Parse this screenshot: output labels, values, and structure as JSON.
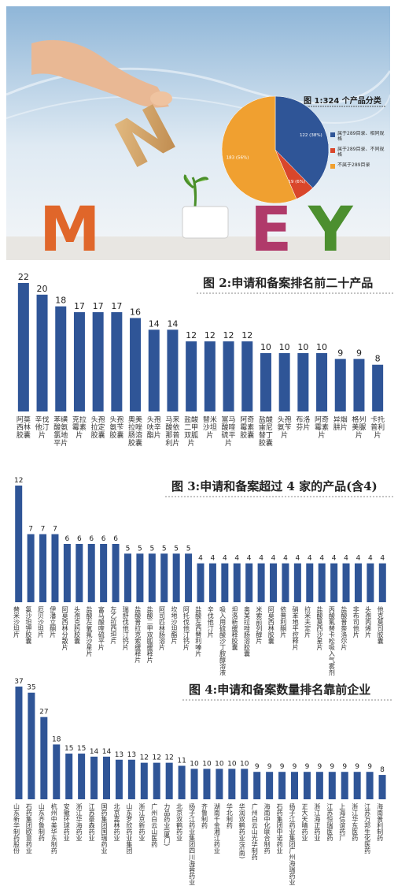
{
  "illustration": {
    "letters": [
      "M",
      "O",
      "N",
      "E",
      "Y"
    ]
  },
  "chart_data": [
    {
      "type": "pie",
      "title": "图 1:324 个产品分类",
      "categories": [
        "属于289目录、相同规格",
        "属于289目录、不同规格",
        "不属于289目录"
      ],
      "values": [
        122,
        19,
        183
      ],
      "value_labels": [
        "122 (38%)",
        "19 (6%)",
        "183 (56%)"
      ],
      "colors": [
        "#2f5597",
        "#d9462b",
        "#f0a030"
      ]
    },
    {
      "type": "bar",
      "title": "图 2:申请和备案排名前二十产品",
      "color": "#2f5597",
      "categories": [
        "阿莫西林胶囊",
        "辛伐他汀片",
        "苯磺酸氨氯地平片",
        "克拉霉素片",
        "头孢拉定胶囊",
        "头孢氨苄胶囊",
        "奥美拉唑肠溶胶囊",
        "头孢呋辛酯片",
        "马来酸依那普利片",
        "盐酸二甲双胍片",
        "替米沙坦片",
        "富马酸喹硫平片",
        "阿奇霉素胶囊",
        "盐酸雷尼替丁胶囊",
        "头孢氨苄片",
        "布洛芬片",
        "阿奇霉素片",
        "异烟肼片",
        "格列美脲片",
        "卡托普利片"
      ],
      "values": [
        22,
        20,
        18,
        17,
        17,
        17,
        16,
        14,
        14,
        12,
        12,
        12,
        12,
        10,
        10,
        10,
        10,
        9,
        9,
        8
      ]
    },
    {
      "type": "bar",
      "title": "图 3:申请和备案超过 4 家的产品(含4)",
      "color": "#2f5597",
      "categories": [
        "替米沙坦片",
        "氯沙坦钾胶囊",
        "厄贝沙坦片",
        "伊潘立酮片",
        "阿莫西林分散片",
        "头孢克肟胶囊",
        "盐酸左氧氟沙星片",
        "富马酸喹硫平片",
        "左乙拉西坦片",
        "瑞舒伐他汀钙片",
        "盐酸普拉克索缓释片",
        "盐酸二甲双胍缓释片",
        "阿司匹林肠溶片",
        "坎地沙坦酯片",
        "阿托伐他汀钙片",
        "盐酸左西替利嗪片",
        "辛伐他汀片",
        "吸入用硫酸沙丁胺醇溶液",
        "坦洛新缓释胶囊",
        "奥美拉唑肠溶胶囊",
        "米索前列醇片",
        "阿莫西林胶囊",
        "依普利酮片",
        "硝苯地平控释片",
        "拉米夫定片",
        "盐酸莫西沙星片",
        "丙酸氟替卡松吸入气雾剂",
        "盐酸普萘洛尔片",
        "非布司他片",
        "头孢丙烯片",
        "他克莫司胶囊"
      ],
      "values": [
        12,
        7,
        7,
        7,
        6,
        6,
        6,
        6,
        6,
        5,
        5,
        5,
        5,
        5,
        5,
        4,
        4,
        4,
        4,
        4,
        4,
        4,
        4,
        4,
        4,
        4,
        4,
        4,
        4,
        4,
        4
      ]
    },
    {
      "type": "bar",
      "title": "图 4:申请和备案数量排名靠前企业",
      "color": "#2f5597",
      "categories": [
        "山东新华制药股份",
        "石药集团欧意药业",
        "山东齐鲁制药",
        "杭州中美华东制药",
        "安徽环球药业",
        "浙江华海药业",
        "江苏豪森药业",
        "国药集团国瑞药业",
        "北京嘉林药业",
        "山东罗欣药业集团",
        "浙江京新药业",
        "广州白云山医药",
        "力品药业(厦门)",
        "北京双鹤药业",
        "扬子江药业集团四川海蓉药业",
        "齐鲁制药",
        "湖南千金湘江药业",
        "华北制药",
        "华润双鹤药业(济南)",
        "广州白云山光华制药",
        "海南中化联合制药",
        "石药集团中诺药业",
        "扬子江药业集团广州海瑞药业",
        "正大天晴药业",
        "浙江海正药业",
        "江苏恒瑞医药",
        "上海信谊药厂",
        "浙江华东医药",
        "江苏万邦生化医药",
        "海南普利制药"
      ],
      "values": [
        37,
        35,
        27,
        18,
        15,
        15,
        14,
        14,
        13,
        13,
        12,
        12,
        12,
        11,
        10,
        10,
        10,
        10,
        10,
        9,
        9,
        9,
        9,
        9,
        9,
        9,
        9,
        9,
        9,
        8
      ]
    }
  ]
}
